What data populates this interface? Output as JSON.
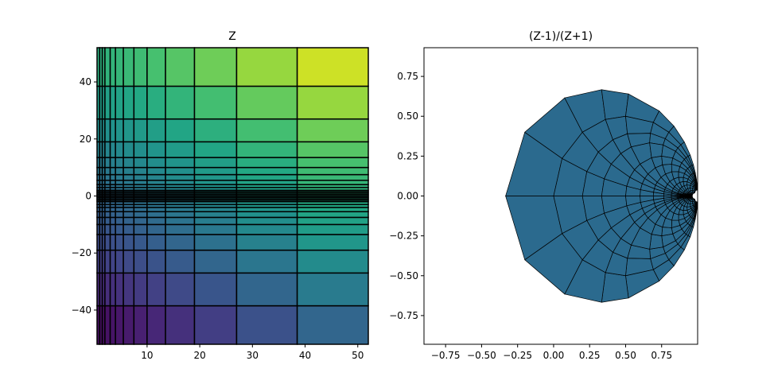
{
  "chart_data": [
    {
      "type": "heatmap",
      "title": "Z",
      "xlabel": "",
      "ylabel": "",
      "xlim": [
        0.5,
        52
      ],
      "ylim": [
        -52,
        52
      ],
      "x_ticks": [
        10,
        20,
        30,
        40,
        50
      ],
      "y_ticks": [
        -40,
        -20,
        0,
        20,
        40
      ],
      "x_edges": [
        0.5,
        1,
        1.5,
        2,
        3,
        4,
        5.5,
        7.5,
        10,
        13.5,
        19,
        27,
        38.5,
        52
      ],
      "y_edges": [
        -52,
        -38.5,
        -27,
        -19,
        -13.5,
        -10,
        -7.5,
        -5.5,
        -4,
        -3,
        -2,
        -1.5,
        -1,
        -0.5,
        0,
        0.5,
        1,
        1.5,
        2,
        3,
        4,
        5.5,
        7.5,
        10,
        13.5,
        19,
        27,
        38.5,
        52
      ],
      "value_formula": "color ~ x + y",
      "vmin": -50,
      "vmax": 102,
      "colormap": "viridis",
      "edgecolor": "#000000",
      "grid": false
    },
    {
      "type": "heatmap",
      "title": "(Z-1)/(Z+1)",
      "xlabel": "",
      "ylabel": "",
      "xlim": [
        -0.9,
        1.0
      ],
      "ylim": [
        -0.93,
        0.93
      ],
      "x_ticks": [
        -0.75,
        -0.5,
        -0.25,
        0.0,
        0.25,
        0.5,
        0.75
      ],
      "y_ticks": [
        -0.75,
        -0.5,
        -0.25,
        0.0,
        0.25,
        0.5,
        0.75
      ],
      "x_tick_labels": [
        "−0.75",
        "−0.50",
        "−0.25",
        "0.00",
        "0.25",
        "0.50",
        "0.75"
      ],
      "y_tick_labels": [
        "−0.75",
        "−0.50",
        "−0.25",
        "0.00",
        "0.25",
        "0.50",
        "0.75"
      ],
      "transform": "w = (z - 1) / (z + 1)",
      "colormap": "viridis",
      "face_color": "#2b6a8e",
      "edgecolor": "#000000",
      "grid": false
    }
  ]
}
